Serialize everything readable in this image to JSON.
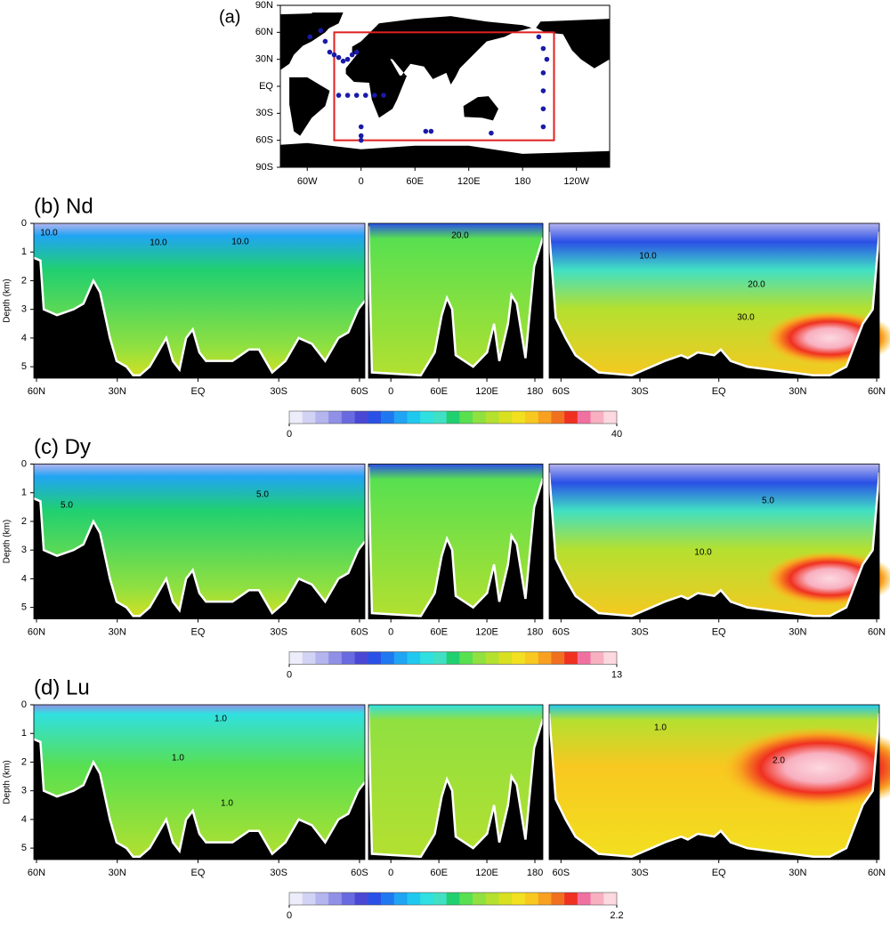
{
  "chart_data": [
    {
      "type": "map",
      "title": "(a)",
      "xlim": [
        -90,
        277
      ],
      "ylim": [
        -90,
        90
      ],
      "xticks": [
        {
          "value": -60,
          "label": "60W"
        },
        0,
        {
          "value": 60,
          "label": "60E"
        },
        {
          "value": 120,
          "label": "120E"
        },
        180,
        {
          "value": 240,
          "label": "120W"
        }
      ],
      "yticks": [
        {
          "value": 90,
          "label": "90N"
        },
        {
          "value": 60,
          "label": "60N"
        },
        {
          "value": 30,
          "label": "30N"
        },
        {
          "value": 0,
          "label": "EQ"
        },
        {
          "value": -30,
          "label": "30S"
        },
        {
          "value": -60,
          "label": "60S"
        },
        {
          "value": -90,
          "label": "90S"
        }
      ],
      "stations": {
        "color": "#1a1aa8",
        "lon": [
          -57,
          -45,
          -40,
          -30,
          -25,
          -20,
          -15,
          -10,
          -5,
          -35,
          -25,
          -15,
          -5,
          5,
          15,
          25,
          0,
          0,
          0,
          72,
          78,
          145,
          198,
          203,
          207,
          203,
          203,
          203,
          203
        ],
        "lat": [
          55,
          62,
          50,
          35,
          32,
          28,
          30,
          35,
          38,
          38,
          -10,
          -10,
          -10,
          -10,
          -10,
          -10,
          -45,
          -55,
          -60,
          -50,
          -50,
          -52,
          55,
          42,
          30,
          15,
          -5,
          -25,
          -45
        ]
      },
      "region": {
        "color": "#e02020",
        "lon": [
          -30,
          215
        ],
        "lat": [
          -60,
          60
        ]
      }
    },
    {
      "type": "section",
      "title": "(b) Nd",
      "ylabel": "Depth (km)",
      "ylim": [
        0,
        5.4
      ],
      "yticks": [
        0,
        1,
        2,
        3,
        4,
        5
      ],
      "panels": [
        {
          "xlim": [
            61,
            -62
          ],
          "xticks": [
            {
              "value": 60,
              "label": "60N"
            },
            {
              "value": 30,
              "label": "30N"
            },
            {
              "value": 0,
              "label": "EQ"
            },
            {
              "value": -30,
              "label": "30S"
            },
            {
              "value": -60,
              "label": "60S"
            }
          ]
        },
        {
          "xlim": [
            -28,
            190
          ],
          "xticks": [
            0,
            {
              "value": 60,
              "label": "60E"
            },
            {
              "value": 120,
              "label": "120E"
            },
            180
          ]
        },
        {
          "xlim": [
            -64.5,
            61
          ],
          "xticks": [
            {
              "value": -60,
              "label": "60S"
            },
            {
              "value": -30,
              "label": "30S"
            },
            {
              "value": 0,
              "label": "EQ"
            },
            {
              "value": 30,
              "label": "30N"
            },
            {
              "value": 60,
              "label": "60N"
            }
          ]
        }
      ],
      "colorbar": {
        "clim": [
          0,
          40
        ],
        "ticks": [
          0,
          40
        ]
      },
      "contour_labels": [
        {
          "value": 10,
          "label": "10.0"
        },
        {
          "value": 10,
          "label": "10.0"
        },
        {
          "value": 10,
          "label": "10.0"
        },
        {
          "value": 20,
          "label": "20.0"
        },
        {
          "value": 10,
          "label": "10.0"
        },
        {
          "value": 20,
          "label": "20.0"
        },
        {
          "value": 30,
          "label": "30.0"
        }
      ]
    },
    {
      "type": "section",
      "title": "(c) Dy",
      "ylabel": "Depth (km)",
      "ylim": [
        0,
        5.4
      ],
      "yticks": [
        0,
        1,
        2,
        3,
        4,
        5
      ],
      "panels": [
        {
          "xlim": [
            61,
            -62
          ],
          "xticks": [
            {
              "value": 60,
              "label": "60N"
            },
            {
              "value": 30,
              "label": "30N"
            },
            {
              "value": 0,
              "label": "EQ"
            },
            {
              "value": -30,
              "label": "30S"
            },
            {
              "value": -60,
              "label": "60S"
            }
          ]
        },
        {
          "xlim": [
            -28,
            190
          ],
          "xticks": [
            0,
            {
              "value": 60,
              "label": "60E"
            },
            {
              "value": 120,
              "label": "120E"
            },
            180
          ]
        },
        {
          "xlim": [
            -64.5,
            61
          ],
          "xticks": [
            {
              "value": -60,
              "label": "60S"
            },
            {
              "value": -30,
              "label": "30S"
            },
            {
              "value": 0,
              "label": "EQ"
            },
            {
              "value": 30,
              "label": "30N"
            },
            {
              "value": 60,
              "label": "60N"
            }
          ]
        }
      ],
      "colorbar": {
        "clim": [
          0,
          13
        ],
        "ticks": [
          0,
          13
        ]
      },
      "contour_labels": [
        {
          "value": 5,
          "label": "5.0"
        },
        {
          "value": 5,
          "label": "5.0"
        },
        {
          "value": 5,
          "label": "5.0"
        },
        {
          "value": 10,
          "label": "10.0"
        }
      ]
    },
    {
      "type": "section",
      "title": "(d) Lu",
      "ylabel": "Depth (km)",
      "ylim": [
        0,
        5.4
      ],
      "yticks": [
        0,
        1,
        2,
        3,
        4,
        5
      ],
      "panels": [
        {
          "xlim": [
            61,
            -62
          ],
          "xticks": [
            {
              "value": 60,
              "label": "60N"
            },
            {
              "value": 30,
              "label": "30N"
            },
            {
              "value": 0,
              "label": "EQ"
            },
            {
              "value": -30,
              "label": "30S"
            },
            {
              "value": -60,
              "label": "60S"
            }
          ]
        },
        {
          "xlim": [
            -28,
            190
          ],
          "xticks": [
            0,
            {
              "value": 60,
              "label": "60E"
            },
            {
              "value": 120,
              "label": "120E"
            },
            180
          ]
        },
        {
          "xlim": [
            -64.5,
            61
          ],
          "xticks": [
            {
              "value": -60,
              "label": "60S"
            },
            {
              "value": -30,
              "label": "30S"
            },
            {
              "value": 0,
              "label": "EQ"
            },
            {
              "value": 30,
              "label": "30N"
            },
            {
              "value": 60,
              "label": "60N"
            }
          ]
        }
      ],
      "colorbar": {
        "clim": [
          0,
          2.2
        ],
        "ticks": [
          0,
          2.2
        ]
      },
      "contour_labels": [
        {
          "value": 1,
          "label": "1.0"
        },
        {
          "value": 1,
          "label": "1.0"
        },
        {
          "value": 1,
          "label": "1.0"
        },
        {
          "value": 1,
          "label": "1.0"
        },
        {
          "value": 2,
          "label": "2.0"
        }
      ]
    }
  ]
}
